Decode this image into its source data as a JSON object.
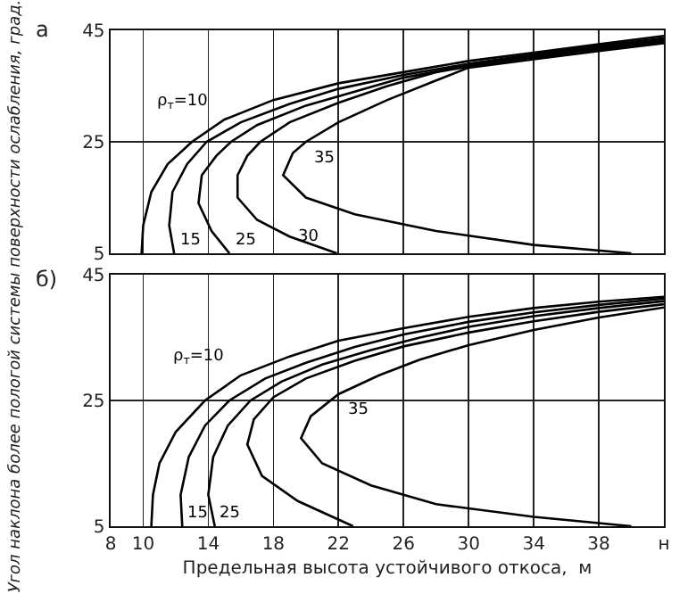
{
  "chart_data": [
    {
      "type": "line",
      "title": "а",
      "xlim": [
        8,
        42
      ],
      "ylim": [
        5,
        45
      ],
      "xticks": [
        8,
        10,
        14,
        18,
        22,
        26,
        30,
        34,
        38,
        42
      ],
      "yticks": [
        5,
        25,
        45
      ],
      "grid": true,
      "legend": false,
      "tick_labels": "y",
      "series": [
        {
          "name": "ρ$_{т}$=10",
          "color": "#000000",
          "x": [
            9.9,
            10.0,
            10.5,
            11.5,
            13.0,
            15,
            18,
            22,
            26,
            30,
            34,
            38,
            42
          ],
          "values": [
            5,
            10,
            16,
            21,
            25,
            29,
            32.5,
            35.5,
            37.5,
            39.5,
            41,
            42.5,
            44
          ]
        },
        {
          "name": "15",
          "color": "#000000",
          "x": [
            11.9,
            11.6,
            11.8,
            12.7,
            13.9,
            16,
            19,
            22,
            26,
            30,
            34,
            38,
            42
          ],
          "values": [
            5,
            10,
            16,
            21,
            25,
            28.5,
            31.8,
            34.5,
            37,
            39,
            40.7,
            42.2,
            43.6
          ]
        },
        {
          "name": "25",
          "color": "#000000",
          "x": [
            15.3,
            14.2,
            13.4,
            13.6,
            14.5,
            15.4,
            17,
            20,
            23,
            26,
            30,
            34,
            38,
            42
          ],
          "values": [
            5,
            9,
            14,
            19,
            22.5,
            25,
            28,
            31.5,
            34,
            36.5,
            38.7,
            40.4,
            41.9,
            43.3
          ]
        },
        {
          "name": "30",
          "color": "#000000",
          "x": [
            21.9,
            19,
            17,
            15.8,
            15.8,
            16.4,
            17.2,
            19,
            22,
            25,
            28,
            30,
            34,
            38,
            42
          ],
          "values": [
            5,
            8,
            11,
            15,
            19,
            22.5,
            25,
            28.5,
            32,
            35,
            37.5,
            38.5,
            40.1,
            41.6,
            43
          ]
        },
        {
          "name": "35",
          "color": "#000000",
          "x": [
            40,
            34,
            28,
            23,
            20,
            18.6,
            19.2,
            20,
            22,
            25,
            28,
            30,
            34,
            38,
            42
          ],
          "values": [
            5,
            6.5,
            9,
            12,
            15,
            19,
            23,
            25,
            28.5,
            32.5,
            36,
            38.3,
            39.8,
            41.3,
            42.7
          ]
        }
      ]
    },
    {
      "type": "line",
      "title": "б)",
      "xlabel": "Предельная высота устойчивого откоса,  м",
      "ylabel": "Угол наклона более пологой системы поверхности ослабления, град.",
      "xlim": [
        8,
        42
      ],
      "ylim": [
        5,
        45
      ],
      "xticks": [
        8,
        10,
        14,
        18,
        22,
        26,
        30,
        34,
        38,
        {
          "value": 42,
          "label": "н"
        }
      ],
      "yticks": [
        5,
        25,
        45
      ],
      "grid": true,
      "legend": false,
      "series": [
        {
          "name": "ρ$_{т}$=10",
          "color": "#000000",
          "x": [
            10.5,
            10.6,
            11,
            12,
            13.8,
            16,
            19,
            22,
            26,
            30,
            34,
            38,
            42
          ],
          "values": [
            5,
            10,
            15,
            20,
            25,
            29,
            32,
            34.5,
            36.5,
            38.3,
            39.7,
            40.7,
            41.5
          ]
        },
        {
          "name": "15",
          "color": "#000000",
          "x": [
            12.4,
            12.3,
            12.8,
            13.8,
            15.3,
            17.5,
            20,
            23,
            26,
            30,
            34,
            38,
            42
          ],
          "values": [
            5,
            10,
            16,
            21,
            25,
            28.5,
            31,
            33.5,
            35.5,
            37.5,
            39,
            40.2,
            41.2
          ]
        },
        {
          "name": "25",
          "color": "#000000",
          "x": [
            14.4,
            14.0,
            14.3,
            15.2,
            16.6,
            18.5,
            21,
            24,
            27,
            30,
            34,
            38,
            42
          ],
          "values": [
            5,
            10,
            16,
            21,
            25,
            28,
            30.7,
            33,
            35,
            36.7,
            38.4,
            39.7,
            40.8
          ]
        },
        {
          "color": "#000000",
          "x": [
            22.9,
            19.5,
            17.3,
            16.4,
            16.8,
            18,
            20,
            23,
            26,
            30,
            34,
            38,
            42
          ],
          "values": [
            5,
            9,
            13,
            18,
            22,
            25.5,
            28.5,
            31.3,
            33.6,
            35.8,
            37.6,
            39.1,
            40.3
          ]
        },
        {
          "name": "35",
          "color": "#000000",
          "x": [
            40,
            34,
            28,
            24,
            21,
            19.7,
            20.3,
            22,
            24.5,
            27,
            30,
            34,
            38,
            42
          ],
          "values": [
            5,
            6.5,
            8.5,
            11.5,
            15,
            19,
            22.5,
            26,
            29,
            31.5,
            33.8,
            36.2,
            38.2,
            39.8
          ]
        }
      ]
    }
  ]
}
